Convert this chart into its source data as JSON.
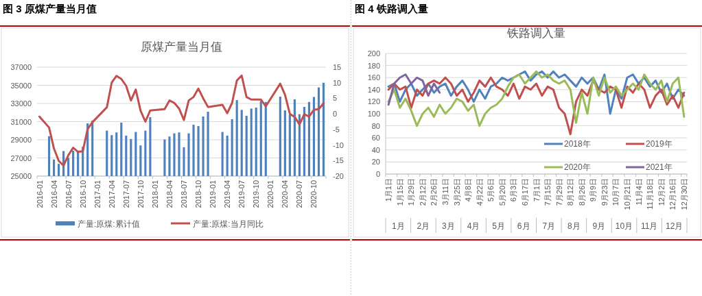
{
  "chart_data": [
    {
      "type": "bar",
      "title": "原煤产量当月值",
      "annotations": [
        "图 3 原煤产量当月值"
      ],
      "categories": [
        "2016-01",
        null,
        null,
        "2016-04",
        null,
        null,
        "2016-07",
        null,
        null,
        "2016-10",
        null,
        null,
        "2017-01",
        null,
        null,
        "2017-04",
        null,
        null,
        "2017-07",
        null,
        null,
        "2017-10",
        null,
        null,
        "2018-01",
        null,
        null,
        "2018-04",
        null,
        null,
        "2018-07",
        null,
        null,
        "2018-10",
        null,
        null,
        "2019-01",
        null,
        null,
        "2019-04",
        null,
        null,
        "2019-07",
        null,
        null,
        "2019-10",
        null,
        null,
        "2020-01",
        null,
        null,
        "2020-04",
        null,
        null,
        "2020-07",
        null,
        null,
        "2020-10",
        null,
        null
      ],
      "series": [
        {
          "name": "产量:原煤:累计值",
          "color": "#4f81bd",
          "values": [
            null,
            null,
            29390,
            26830,
            26350,
            27760,
            27000,
            27800,
            27680,
            28230,
            30810,
            31110,
            null,
            null,
            30010,
            29510,
            29810,
            30890,
            29460,
            29090,
            29860,
            28380,
            30010,
            31490,
            null,
            null,
            29040,
            29360,
            29710,
            29810,
            28180,
            29710,
            30660,
            30510,
            31570,
            32090,
            null,
            null,
            29860,
            29460,
            31270,
            33370,
            32290,
            31640,
            32440,
            32540,
            33270,
            33170,
            null,
            null,
            33750,
            32240,
            31770,
            33450,
            31820,
            32620,
            33170,
            33720,
            34770,
            35280
          ]
        },
        {
          "name": "产量:原煤:当月同比",
          "type": "line",
          "axis": "y2",
          "color": "#c0504d",
          "values": [
            -0.9,
            null,
            -4.4,
            -11.1,
            -15.1,
            -16.6,
            -13.3,
            -10.9,
            -12.2,
            -12.0,
            -4.9,
            -2.7,
            null,
            null,
            2.1,
            10.0,
            12.2,
            11.2,
            9.0,
            4.3,
            7.8,
            1.0,
            -2.5,
            1.1,
            null,
            null,
            1.5,
            4.3,
            3.5,
            1.7,
            -2.0,
            4.3,
            5.4,
            8.1,
            5.0,
            2.2,
            null,
            null,
            2.9,
            0.2,
            3.5,
            10.7,
            12.3,
            5.4,
            4.6,
            4.6,
            4.6,
            2.4,
            null,
            null,
            9.7,
            6.1,
            0.0,
            -1.0,
            -3.4,
            -0.1,
            -0.9,
            1.3,
            1.5,
            3.4
          ]
        }
      ],
      "ylim": [
        25000,
        37000
      ],
      "yticks": [
        25000,
        27000,
        29000,
        31000,
        33000,
        35000,
        37000
      ],
      "y2lim": [
        -20,
        15
      ],
      "y2ticks": [
        -20,
        -15,
        -10,
        -5,
        0,
        5,
        10,
        15
      ],
      "grid": "y",
      "legend": "bottom"
    },
    {
      "type": "line",
      "title": "铁路调入量",
      "annotations": [
        "图 4 铁路调入量",
        "1月",
        "2月",
        "3月",
        "4月",
        "5月",
        "6月",
        "7月",
        "8月",
        "9月",
        "10月",
        "11月",
        "12月"
      ],
      "categories": [
        "1月1日",
        null,
        "1月15日",
        null,
        "1月29日",
        null,
        "2月12日",
        null,
        "2月26日",
        null,
        "3月11日",
        null,
        "3月25日",
        null,
        "4月8日",
        null,
        "4月22日",
        null,
        "5月6日",
        null,
        "5月20日",
        null,
        "6月3日",
        null,
        "6月17日",
        null,
        "7月1日",
        null,
        "7月15日",
        null,
        "7月29日",
        null,
        "8月12日",
        null,
        "8月26日",
        null,
        "9月9日",
        null,
        "9月23日",
        null,
        "10月7日",
        null,
        "10月21日",
        null,
        "11月4日",
        null,
        "11月18日",
        null,
        "12月2日",
        null,
        "12月16日",
        null,
        "12月30日"
      ],
      "series": [
        {
          "name": "2018年",
          "color": "#4f81bd",
          "values": [
            145,
            150,
            120,
            140,
            150,
            130,
            140,
            150,
            135,
            145,
            150,
            130,
            145,
            155,
            140,
            120,
            140,
            125,
            145,
            150,
            160,
            155,
            160,
            165,
            170,
            155,
            165,
            170,
            160,
            170,
            160,
            165,
            155,
            145,
            160,
            150,
            160,
            140,
            165,
            100,
            140,
            125,
            160,
            165,
            150,
            160,
            145,
            155,
            135,
            150,
            125,
            140,
            130
          ]
        },
        {
          "name": "2019年",
          "color": "#c0504d",
          "values": [
            140,
            150,
            140,
            145,
            110,
            140,
            130,
            150,
            155,
            150,
            160,
            150,
            130,
            140,
            120,
            135,
            155,
            145,
            160,
            145,
            140,
            130,
            150,
            125,
            145,
            140,
            150,
            130,
            145,
            140,
            110,
            100,
            66,
            120,
            140,
            130,
            155,
            140,
            135,
            145,
            140,
            110,
            145,
            135,
            150,
            140,
            110,
            130,
            140,
            115,
            130,
            110,
            135
          ]
        },
        {
          "name": "2020年",
          "color": "#9bbb59",
          "values": [
            120,
            140,
            110,
            125,
            105,
            80,
            100,
            110,
            95,
            115,
            100,
            110,
            125,
            120,
            105,
            115,
            80,
            100,
            110,
            115,
            125,
            145,
            160,
            165,
            150,
            160,
            170,
            160,
            165,
            155,
            150,
            155,
            140,
            85,
            135,
            100,
            160,
            130,
            160,
            135,
            145,
            130,
            140,
            150,
            140,
            165,
            150,
            140,
            155,
            120,
            150,
            160,
            95
          ]
        },
        {
          "name": "2021年",
          "color": "#8064a2",
          "values": [
            115,
            150,
            160,
            165,
            150,
            160,
            155,
            130,
            150,
            135,
            null,
            null,
            null,
            null,
            null,
            null,
            null,
            null,
            null,
            null,
            null,
            null,
            null,
            null,
            null,
            null,
            null,
            null,
            null,
            null,
            null,
            null,
            null,
            null,
            null,
            null,
            null,
            null,
            null,
            null,
            null,
            null,
            null,
            null,
            null,
            null,
            null,
            null,
            null,
            null,
            null,
            null,
            null
          ]
        }
      ],
      "ylim": [
        0,
        200
      ],
      "yticks": [
        0,
        20,
        40,
        60,
        80,
        100,
        120,
        140,
        160,
        180,
        200
      ],
      "grid": "y",
      "legend": "bottom right"
    }
  ]
}
